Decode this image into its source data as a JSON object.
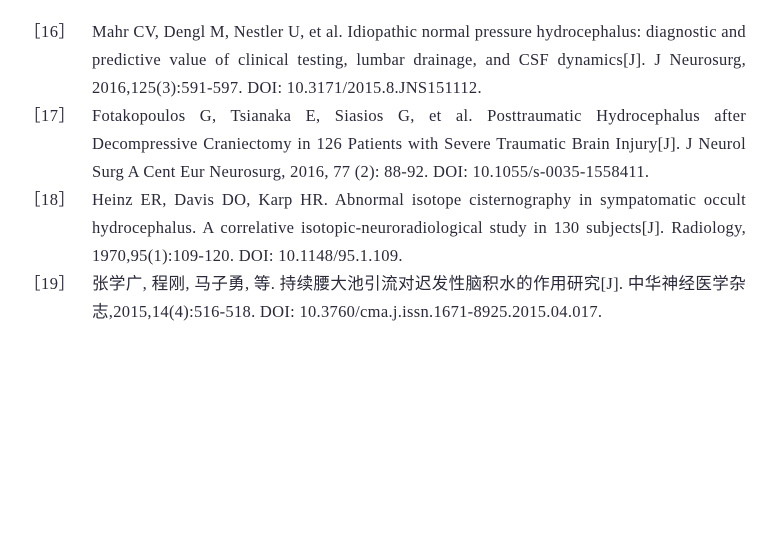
{
  "references": [
    {
      "num": "［16］",
      "text": "Mahr CV, Dengl M, Nestler U, et al. Idiopathic normal pressure hydrocephalus: diagnostic and predictive value of clinical testing, lumbar drainage, and CSF dynamics[J]. J Neurosurg, 2016,125(3):591-597. DOI: 10.3171/2015.8.JNS151112."
    },
    {
      "num": "［17］",
      "text": "Fotakopoulos G, Tsianaka E, Siasios G, et al. Posttraumatic Hydrocephalus after Decompressive Craniectomy in 126 Patients with Severe Traumatic Brain Injury[J]. J Neurol Surg A Cent Eur Neurosurg, 2016, 77 (2): 88-92. DOI: 10.1055/s-0035-1558411."
    },
    {
      "num": "［18］",
      "text": "Heinz ER, Davis DO, Karp HR. Abnormal isotope cisternography in sympatomatic occult hydrocephalus. A correlative isotopic-neuroradiological study in 130 subjects[J]. Radiology, 1970,95(1):109-120. DOI: 10.1148/95.1.109."
    },
    {
      "num": "［19］",
      "text": "张学广, 程刚, 马子勇, 等. 持续腰大池引流对迟发性脑积水的作用研究[J]. 中华神经医学杂志,2015,14(4):516-518. DOI: 10.3760/cma.j.issn.1671-8925.2015.04.017."
    }
  ]
}
